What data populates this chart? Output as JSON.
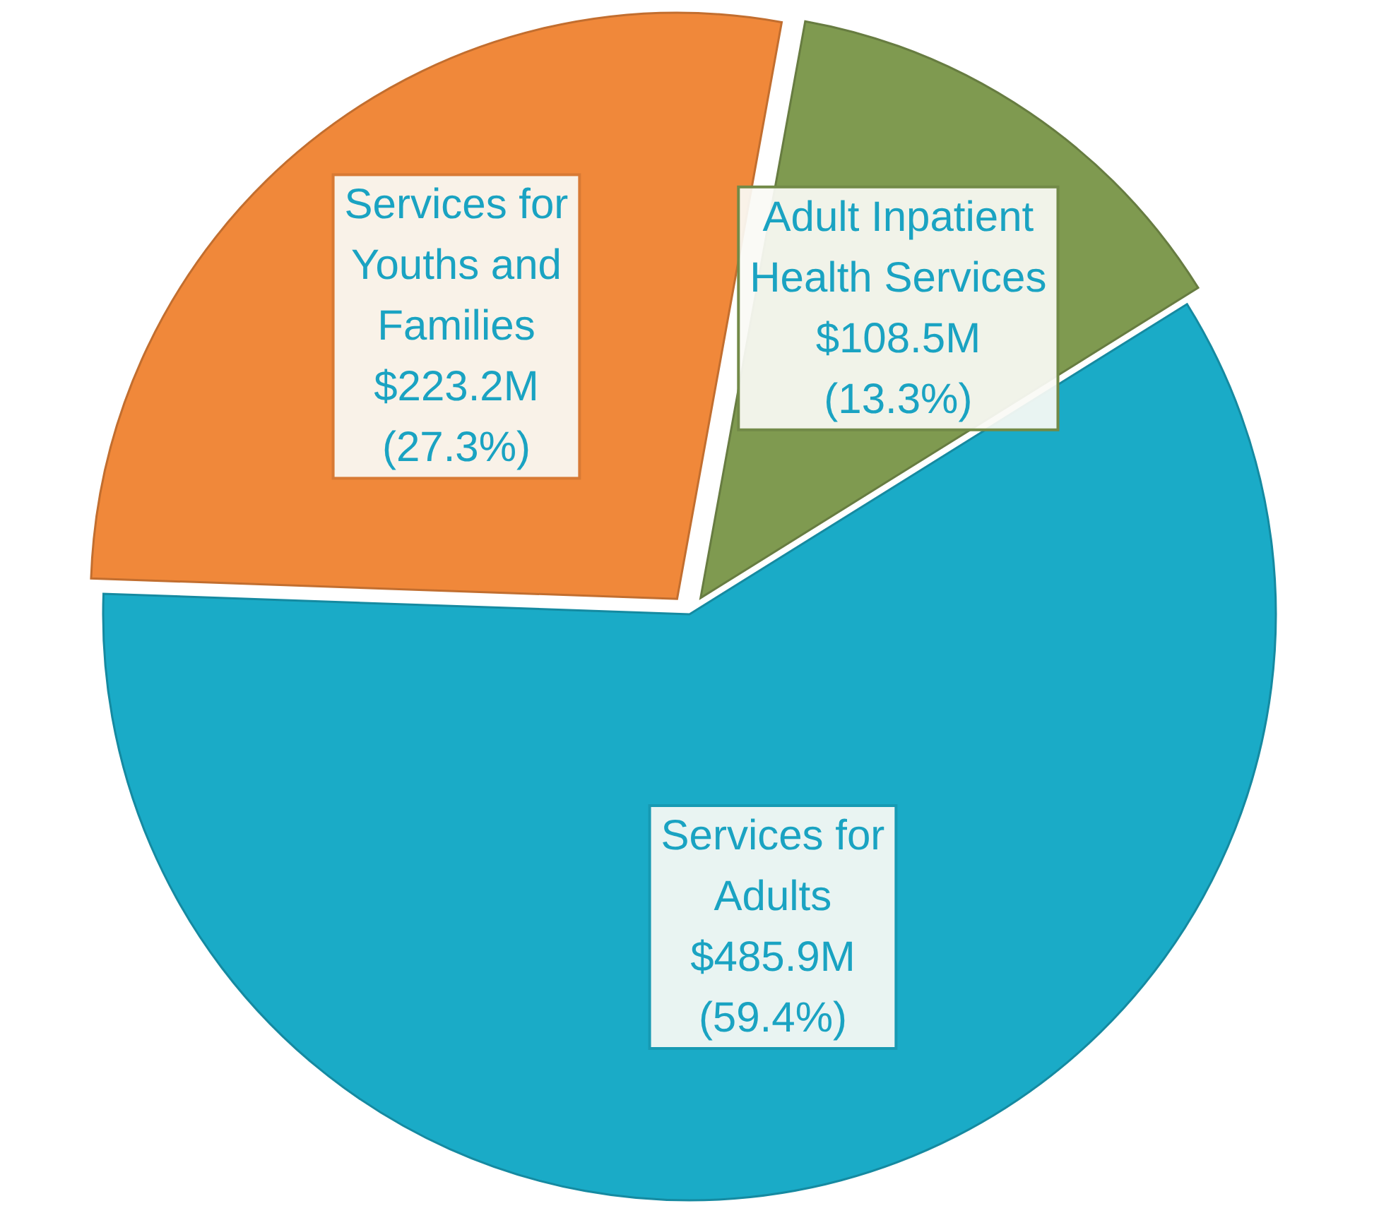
{
  "chart_data": {
    "type": "pie",
    "categories": [
      "Services for Youths and Families",
      "Adult Inpatient Health Services",
      "Services for Adults"
    ],
    "values": [
      223.2,
      108.5,
      485.9
    ],
    "colors": [
      "#f0883a",
      "#7f9a50",
      "#1aabc7"
    ],
    "value_labels": [
      "$223.2M",
      "$108.5M",
      "$485.9M"
    ],
    "annotations": [
      "(27.3%)",
      "(13.3%)",
      "(59.4%)"
    ]
  }
}
